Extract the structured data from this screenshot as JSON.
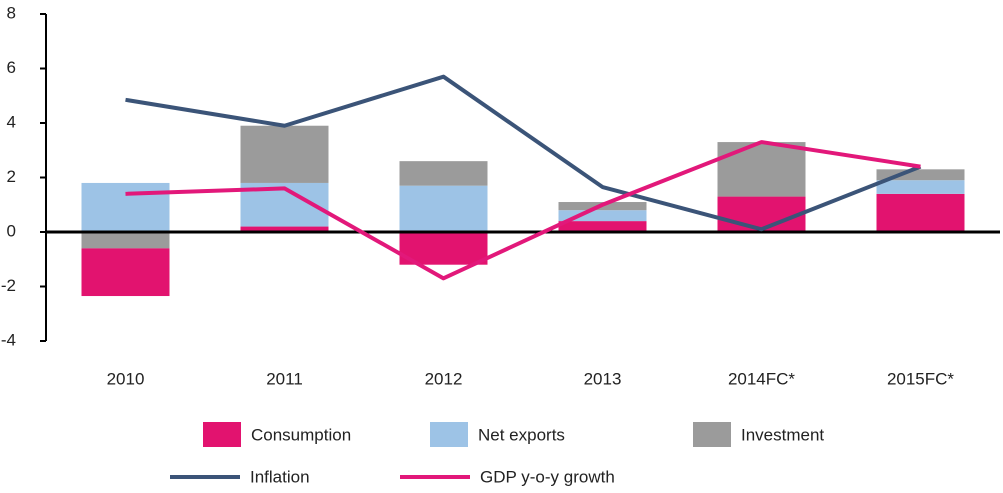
{
  "chart_data": {
    "type": "bar",
    "categories": [
      "2010",
      "2011",
      "2012",
      "2013",
      "2014FC*",
      "2015FC*"
    ],
    "series": [
      {
        "name": "Consumption",
        "type": "bar",
        "color": "#e2136f",
        "values": [
          -1.75,
          0.2,
          -1.2,
          0.4,
          1.3,
          1.4
        ]
      },
      {
        "name": "Net exports",
        "type": "bar",
        "color": "#9dc3e6",
        "values": [
          1.8,
          1.6,
          1.7,
          0.4,
          0,
          0.5
        ]
      },
      {
        "name": "Investment",
        "type": "bar",
        "color": "#9b9b9b",
        "values": [
          -0.6,
          2.1,
          0.9,
          0.3,
          2.0,
          0.4
        ]
      },
      {
        "name": "Inflation",
        "type": "line",
        "color": "#3b5478",
        "values": [
          4.85,
          3.9,
          5.7,
          1.65,
          0.1,
          2.4
        ]
      },
      {
        "name": "GDP y-o-y growth",
        "type": "line",
        "color": "#e2187a",
        "values": [
          1.4,
          1.6,
          -1.7,
          1.0,
          3.3,
          2.4
        ]
      }
    ],
    "ylim": [
      -4,
      8
    ],
    "yticks": [
      -4,
      -2,
      0,
      2,
      4,
      6,
      8
    ],
    "grid": false
  }
}
